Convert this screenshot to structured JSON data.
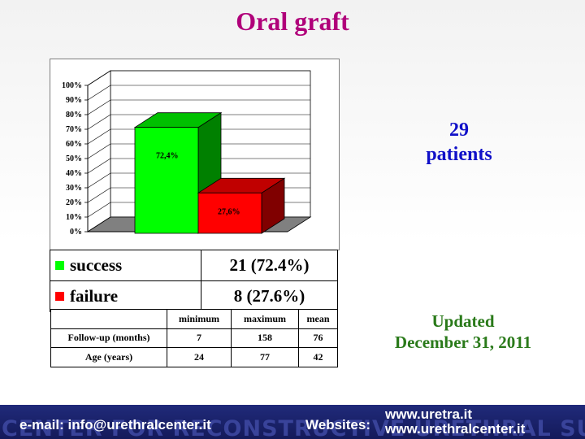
{
  "title": "Oral graft",
  "patients": {
    "count": "29",
    "label": "patients"
  },
  "updated": {
    "line1": "Updated",
    "line2": "December 31, 2011"
  },
  "chart_data": {
    "type": "bar",
    "categories": [
      "success",
      "failure"
    ],
    "values": [
      72.4,
      27.6
    ],
    "data_labels": [
      "72,4%",
      "27,6%"
    ],
    "ylim": [
      0,
      100
    ],
    "yticks": [
      "0%",
      "10%",
      "20%",
      "30%",
      "40%",
      "50%",
      "60%",
      "70%",
      "80%",
      "90%",
      "100%"
    ],
    "colors": [
      "#00ff00",
      "#ff0000"
    ],
    "side_colors": [
      "#008000",
      "#800000"
    ],
    "top_colors": [
      "#00c000",
      "#c00000"
    ],
    "grid": true,
    "three_d": true
  },
  "legend": [
    {
      "label": "success",
      "value": "21 (72.4%)",
      "color": "#00ff00"
    },
    {
      "label": "failure",
      "value": "8 (27.6%)",
      "color": "#ff0000"
    }
  ],
  "stats": {
    "headers": [
      "",
      "minimum",
      "maximum",
      "mean"
    ],
    "rows": [
      [
        "Follow-up (months)",
        "7",
        "158",
        "76"
      ],
      [
        "Age (years)",
        "24",
        "77",
        "42"
      ]
    ]
  },
  "footer": {
    "email": "e-mail: info@urethralcenter.it",
    "websites_label": "Websites:",
    "site1": "www.uretra.it",
    "site2": "www.urethralcenter.it",
    "watermark": "CENTER FOR RECONSTRUCTIVE URETHRAL SURGERY"
  }
}
